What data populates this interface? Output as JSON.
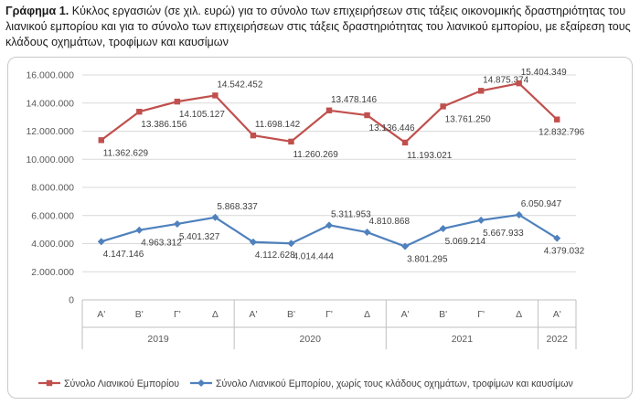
{
  "caption": {
    "label": "Γράφημα 1.",
    "text": " Κύκλος εργασιών (σε χιλ. ευρώ) για το σύνολο των επιχειρήσεων στις τάξεις οικονομικής δραστηριότητας του λιανικού εμπορίου και για το σύνολο των επιχειρήσεων στις τάξεις δραστηριότητας του λιανικού εμπορίου, με εξαίρεση τους κλάδους οχημάτων, τροφίμων και καυσίμων"
  },
  "chart_data": {
    "type": "line",
    "title": "",
    "xlabel": "",
    "ylabel": "",
    "ylim": [
      0,
      16000000
    ],
    "yticks": [
      0,
      2000000,
      4000000,
      6000000,
      8000000,
      10000000,
      12000000,
      14000000,
      16000000
    ],
    "ytick_labels": [
      "0",
      "2.000.000",
      "4.000.000",
      "6.000.000",
      "8.000.000",
      "10.000.000",
      "12.000.000",
      "14.000.000",
      "16.000.000"
    ],
    "categories": [
      "Α'",
      "Β'",
      "Γ'",
      "Δ",
      "Α'",
      "Β'",
      "Γ'",
      "Δ",
      "Α'",
      "Β'",
      "Γ'",
      "Δ",
      "Α'"
    ],
    "year_groups": [
      {
        "label": "2019",
        "start": 0,
        "end": 3
      },
      {
        "label": "2020",
        "start": 4,
        "end": 7
      },
      {
        "label": "2021",
        "start": 8,
        "end": 11
      },
      {
        "label": "2022",
        "start": 12,
        "end": 12
      }
    ],
    "grid": true,
    "legend_position": "bottom",
    "series": [
      {
        "name": "Σύνολο Λιανικού Εμπορίου",
        "color": "#c0504d",
        "marker": "square",
        "values": [
          11362629,
          13386156,
          14105127,
          14542452,
          11698142,
          11260269,
          13478146,
          13136446,
          11193021,
          13761250,
          14875374,
          15404349,
          12832796
        ],
        "labels": [
          "11.362.629",
          "13.386.156",
          "14.105.127",
          "14.542.452",
          "11.698.142",
          "11.260.269",
          "13.478.146",
          "13.136.446",
          "11.193.021",
          "13.761.250",
          "14.875.374",
          "15.404.349",
          "12.832.796"
        ]
      },
      {
        "name": "Σύνολο Λιανικού Εμπορίου, χωρίς τους κλάδους οχημάτων, τροφίμων και καυσίμων",
        "color": "#4f81bd",
        "marker": "diamond",
        "values": [
          4147146,
          4963312,
          5401327,
          5868337,
          4112628,
          4014444,
          5311953,
          4810868,
          3801295,
          5069214,
          5667933,
          6050947,
          4379032
        ],
        "labels": [
          "4.147.146",
          "4.963.312",
          "5.401.327",
          "5.868.337",
          "4.112.628",
          "4.014.444",
          "5.311.953",
          "4.810.868",
          "3.801.295",
          "5.069.214",
          "5.667.933",
          "6.050.947",
          "4.379.032"
        ]
      }
    ]
  }
}
